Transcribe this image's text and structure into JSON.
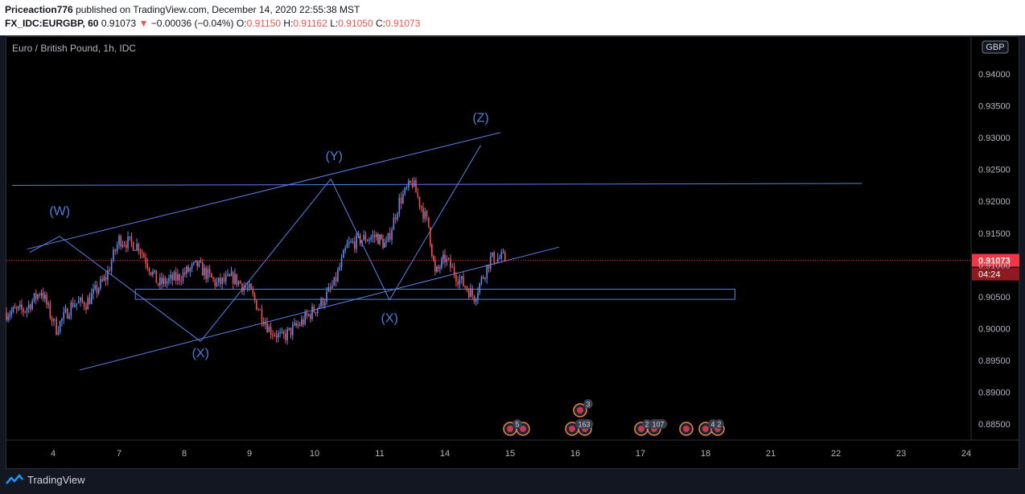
{
  "header": {
    "author": "Priceaction776",
    "published_text": "published on TradingView.com, December 14, 2020 22:55:38 MST",
    "symbol": "FX_IDC:EURGBP, 60",
    "last": "0.91073",
    "change": "−0.00036 (−0.04%)",
    "o_label": "O:",
    "o": "0.91150",
    "h_label": "H:",
    "h": "0.91162",
    "l_label": "L:",
    "l": "0.91050",
    "c_label": "C:",
    "c": "0.91073"
  },
  "chart": {
    "instrument": "Euro / British Pound, 1h, IDC",
    "currency": "GBP",
    "price_label": "0.91073",
    "countdown": "04:24"
  },
  "footer": {
    "brand": "TradingView"
  },
  "colors": {
    "up": "#5b8def",
    "down": "#ef5350",
    "drawing": "#5a82e6",
    "label": "#4f7fdc",
    "price": "#f23645"
  },
  "chart_data": {
    "type": "line",
    "title": "Euro / British Pound, 1h, IDC",
    "x_ticks": [
      "4",
      "7",
      "8",
      "9",
      "10",
      "11",
      "14",
      "15",
      "16",
      "17",
      "18",
      "21",
      "22",
      "23",
      "24"
    ],
    "y_ticks": [
      "0.94000",
      "0.93500",
      "0.93000",
      "0.92500",
      "0.92000",
      "0.91500",
      "0.91000",
      "0.90500",
      "0.90000",
      "0.89500",
      "0.89000",
      "0.88500"
    ],
    "ylim": [
      0.8825,
      0.9458
    ],
    "series": [
      {
        "x": [
          0,
          0.4,
          0.75,
          1.05,
          1.3,
          1.5,
          1.8,
          2.0,
          2.3,
          2.6,
          2.9,
          3.2,
          3.5,
          3.75,
          4.0,
          4.3,
          4.5,
          4.8,
          5.1,
          5.3,
          5.5,
          5.7,
          5.95,
          6.1,
          6.3,
          6.5,
          6.75,
          6.85,
          7.0,
          7.2,
          7.45,
          7.7,
          7.95
        ],
        "values": [
          0.9025,
          0.903,
          0.906,
          0.9,
          0.904,
          0.904,
          0.908,
          0.914,
          0.913,
          0.907,
          0.908,
          0.91,
          0.907,
          0.908,
          0.906,
          0.9,
          0.8985,
          0.901,
          0.904,
          0.907,
          0.913,
          0.914,
          0.9145,
          0.913,
          0.92,
          0.923,
          0.916,
          0.9085,
          0.911,
          0.908,
          0.905,
          0.911,
          0.911
        ]
      }
    ],
    "annotations": [
      {
        "text": "(W)",
        "x": 1.1,
        "y": 0.9178
      },
      {
        "text": "(X)",
        "x": 3.25,
        "y": 0.8955
      },
      {
        "text": "(Y)",
        "x": 5.3,
        "y": 0.9265
      },
      {
        "text": "(X)",
        "x": 6.15,
        "y": 0.901
      },
      {
        "text": "(Z)",
        "x": 7.55,
        "y": 0.9325
      }
    ],
    "current_price": 0.91073,
    "event_badges": [
      "5",
      "3",
      "163",
      "2",
      "107",
      "4",
      "2"
    ],
    "grid": false
  }
}
